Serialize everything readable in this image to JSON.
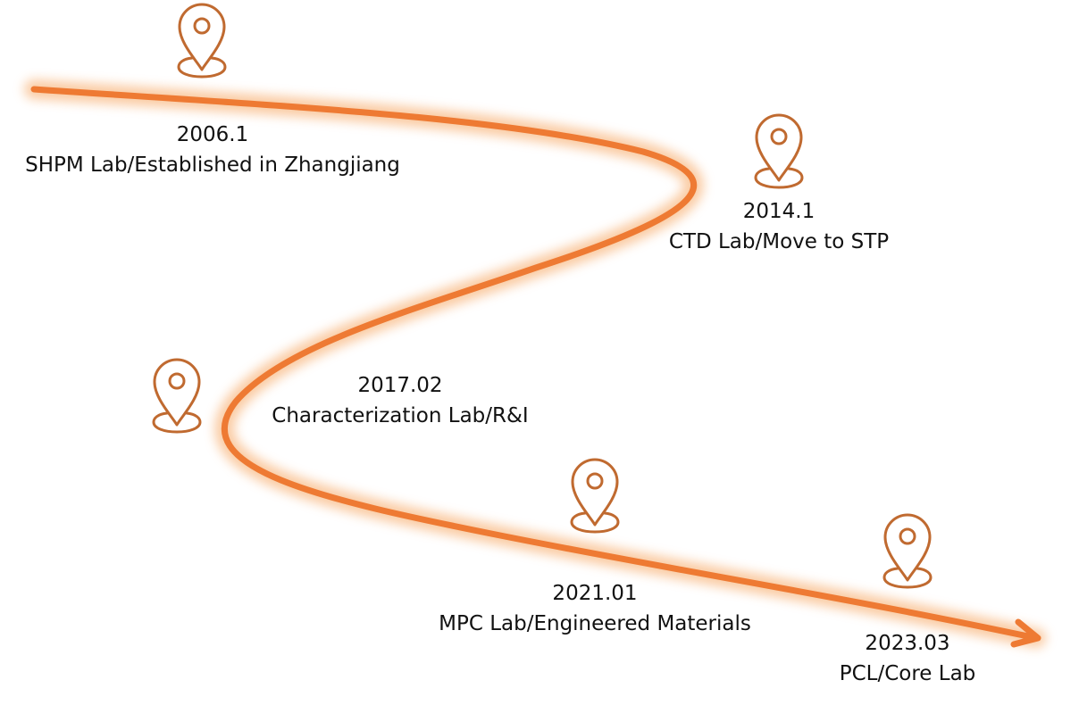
{
  "colors": {
    "path": "#ee7a33",
    "glow": "#f6a25a",
    "pin": "#c06a30",
    "text": "#111111"
  },
  "milestones": [
    {
      "date": "2006.1",
      "label": "SHPM Lab/Established in Zhangjiang"
    },
    {
      "date": "2014.1",
      "label": "CTD Lab/Move to STP"
    },
    {
      "date": "2017.02",
      "label": "Characterization Lab/R&I"
    },
    {
      "date": "2021.01",
      "label": "MPC Lab/Engineered Materials"
    },
    {
      "date": "2023.03",
      "label": "PCL/Core Lab"
    }
  ],
  "icons": [
    "location-pin-icon",
    "location-pin-icon",
    "location-pin-icon",
    "location-pin-icon",
    "location-pin-icon"
  ]
}
